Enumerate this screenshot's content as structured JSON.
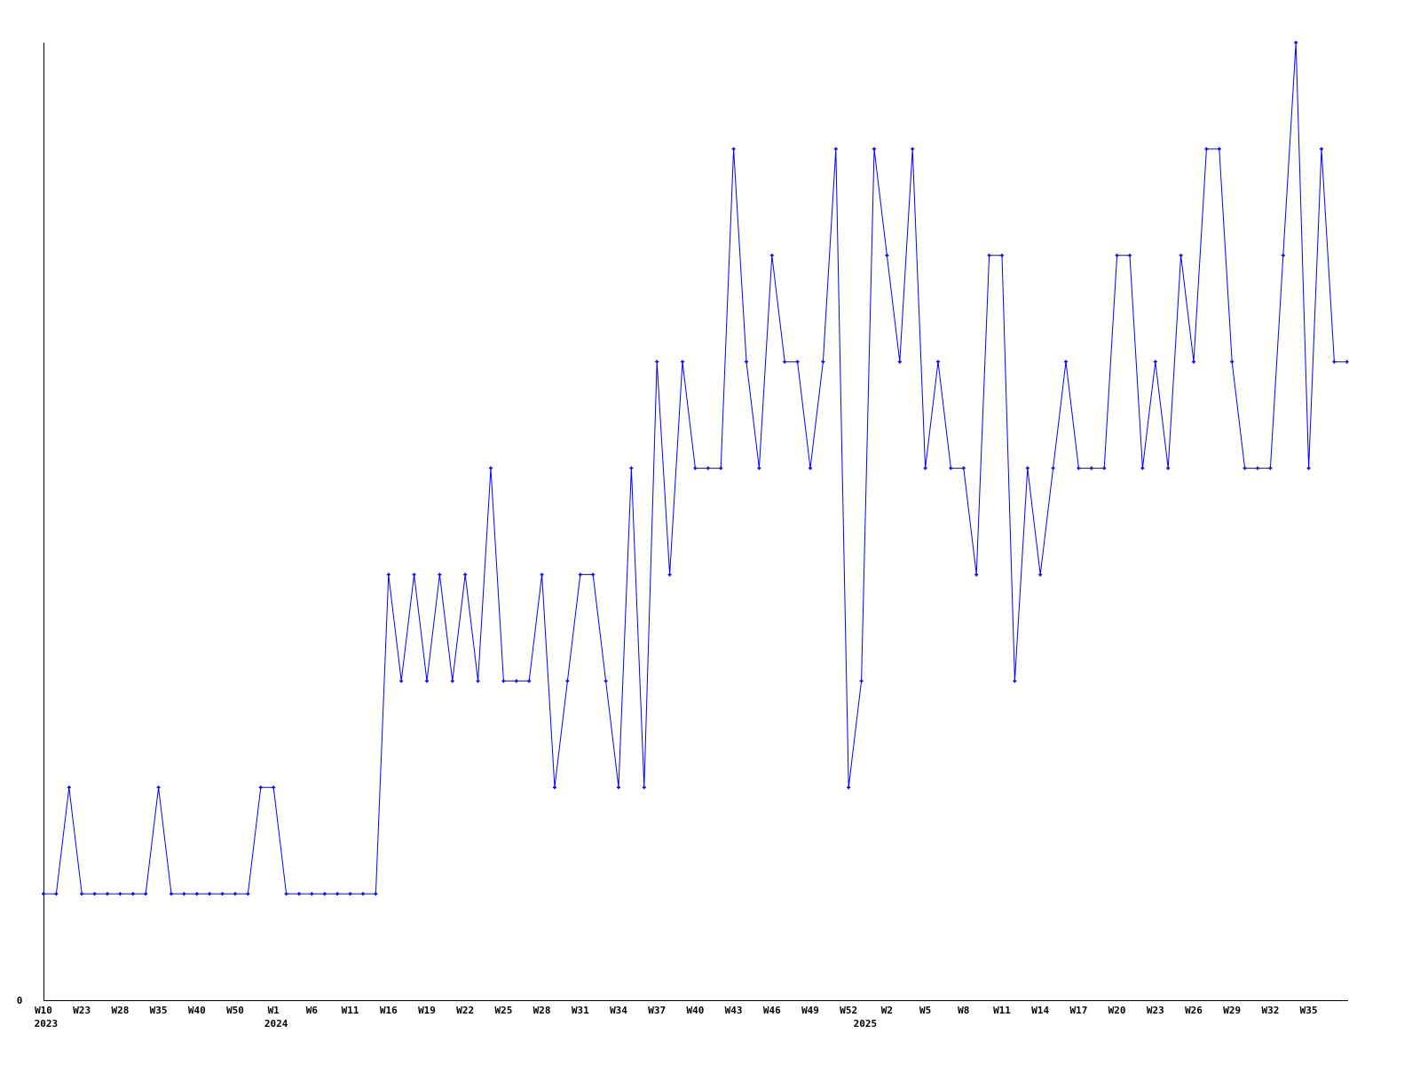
{
  "chart_data": {
    "type": "line",
    "title": "",
    "xlabel": "",
    "ylabel": "",
    "ylim": [
      0,
      9
    ],
    "y_tick_labels": [
      "0"
    ],
    "grid": false,
    "line_color": "#0000ff",
    "x_tick_labels": [
      "W10",
      "W23",
      "W28",
      "W35",
      "W40",
      "W50",
      "W1",
      "W6",
      "W11",
      "W16",
      "W19",
      "W22",
      "W25",
      "W28",
      "W31",
      "W34",
      "W37",
      "W40",
      "W43",
      "W46",
      "W49",
      "W52",
      "W2",
      "W5",
      "W8",
      "W11",
      "W14",
      "W17",
      "W20",
      "W23",
      "W26",
      "W29",
      "W32",
      "W35"
    ],
    "year_labels": [
      "2023",
      "2024",
      "2025"
    ],
    "values": [
      1,
      1,
      2,
      1,
      1,
      1,
      1,
      1,
      1,
      2,
      1,
      1,
      1,
      1,
      1,
      1,
      1,
      2,
      2,
      1,
      1,
      1,
      1,
      1,
      1,
      1,
      1,
      4,
      3,
      4,
      3,
      4,
      3,
      4,
      3,
      5,
      3,
      3,
      3,
      4,
      2,
      3,
      4,
      4,
      3,
      2,
      5,
      2,
      6,
      4,
      6,
      5,
      5,
      5,
      8,
      6,
      5,
      7,
      6,
      6,
      5,
      6,
      8,
      2,
      3,
      8,
      7,
      6,
      8,
      5,
      6,
      5,
      5,
      4,
      7,
      7,
      3,
      5,
      4,
      5,
      6,
      5,
      5,
      5,
      7,
      7,
      5,
      6,
      5,
      7,
      6,
      8,
      8,
      6,
      5,
      5,
      5,
      7,
      9,
      5,
      8,
      6,
      6
    ]
  }
}
